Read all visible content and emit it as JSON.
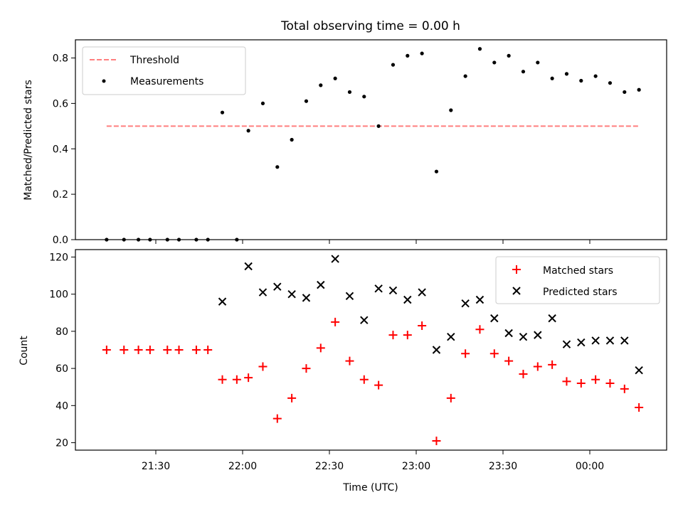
{
  "title": "Total observing time = 0.00 h",
  "chart_data": [
    {
      "type": "scatter",
      "ylabel": "Matched/Predicted stars",
      "ylim": [
        0,
        0.88
      ],
      "yticks": [
        "0.0",
        "0.2",
        "0.4",
        "0.6",
        "0.8"
      ],
      "legend": {
        "placement": "top-left",
        "entries": [
          "Threshold",
          "Measurements"
        ]
      },
      "threshold": {
        "name": "Threshold",
        "value": 0.5,
        "color": "#ff7f7f",
        "style": "dashed",
        "x_start": "21:13",
        "x_end": "00:17"
      },
      "series": [
        {
          "name": "Measurements",
          "color": "#000000",
          "x": [
            "21:13",
            "21:19",
            "21:24",
            "21:28",
            "21:34",
            "21:38",
            "21:44",
            "21:48",
            "21:53",
            "21:58",
            "22:02",
            "22:07",
            "22:12",
            "22:17",
            "22:22",
            "22:27",
            "22:32",
            "22:37",
            "22:42",
            "22:47",
            "22:52",
            "22:57",
            "23:02",
            "23:07",
            "23:12",
            "23:17",
            "23:22",
            "23:27",
            "23:32",
            "23:37",
            "23:42",
            "23:47",
            "23:52",
            "23:57",
            "00:02",
            "00:07",
            "00:12",
            "00:17"
          ],
          "y": [
            0.0,
            0.0,
            0.0,
            0.0,
            0.0,
            0.0,
            0.0,
            0.0,
            0.56,
            0.0,
            0.48,
            0.6,
            0.32,
            0.44,
            0.61,
            0.68,
            0.71,
            0.65,
            0.63,
            0.5,
            0.77,
            0.81,
            0.82,
            0.3,
            0.57,
            0.72,
            0.84,
            0.78,
            0.81,
            0.74,
            0.78,
            0.71,
            0.73,
            0.7,
            0.72,
            0.69,
            0.65,
            0.66
          ]
        }
      ]
    },
    {
      "type": "scatter",
      "xlabel": "Time (UTC)",
      "ylabel": "Count",
      "ylim": [
        16,
        124
      ],
      "yticks": [
        "20",
        "40",
        "60",
        "80",
        "100",
        "120"
      ],
      "xticks": [
        "21:30",
        "22:00",
        "22:30",
        "23:00",
        "23:30",
        "00:00"
      ],
      "legend": {
        "placement": "top-right",
        "entries": [
          "Matched stars",
          "Predicted stars"
        ]
      },
      "series": [
        {
          "name": "Matched stars",
          "marker": "plus",
          "color": "#ff0000",
          "x": [
            "21:13",
            "21:19",
            "21:24",
            "21:28",
            "21:34",
            "21:38",
            "21:44",
            "21:48",
            "21:53",
            "21:58",
            "22:02",
            "22:07",
            "22:12",
            "22:17",
            "22:22",
            "22:27",
            "22:32",
            "22:37",
            "22:42",
            "22:47",
            "22:52",
            "22:57",
            "23:02",
            "23:07",
            "23:12",
            "23:17",
            "23:22",
            "23:27",
            "23:32",
            "23:37",
            "23:42",
            "23:47",
            "23:52",
            "23:57",
            "00:02",
            "00:07",
            "00:12",
            "00:17"
          ],
          "y": [
            70,
            70,
            70,
            70,
            70,
            70,
            70,
            70,
            54,
            54,
            55,
            61,
            33,
            44,
            60,
            71,
            85,
            64,
            54,
            51,
            78,
            78,
            83,
            21,
            44,
            68,
            81,
            68,
            64,
            57,
            61,
            62,
            53,
            52,
            54,
            52,
            49,
            39
          ]
        },
        {
          "name": "Predicted stars",
          "marker": "x",
          "color": "#000000",
          "x": [
            "21:53",
            "22:02",
            "22:07",
            "22:12",
            "22:17",
            "22:22",
            "22:27",
            "22:32",
            "22:37",
            "22:42",
            "22:47",
            "22:52",
            "22:57",
            "23:02",
            "23:07",
            "23:12",
            "23:17",
            "23:22",
            "23:27",
            "23:32",
            "23:37",
            "23:42",
            "23:47",
            "23:52",
            "23:57",
            "00:02",
            "00:07",
            "00:12",
            "00:17"
          ],
          "y": [
            96,
            115,
            101,
            104,
            100,
            98,
            105,
            119,
            99,
            86,
            103,
            102,
            97,
            101,
            70,
            77,
            95,
            97,
            87,
            79,
            77,
            78,
            87,
            73,
            74,
            75,
            75,
            75,
            59
          ]
        }
      ]
    }
  ]
}
